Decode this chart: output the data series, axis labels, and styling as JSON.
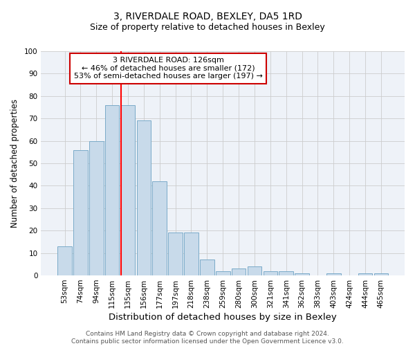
{
  "title": "3, RIVERDALE ROAD, BEXLEY, DA5 1RD",
  "subtitle": "Size of property relative to detached houses in Bexley",
  "xlabel": "Distribution of detached houses by size in Bexley",
  "ylabel": "Number of detached properties",
  "categories": [
    "53sqm",
    "74sqm",
    "94sqm",
    "115sqm",
    "135sqm",
    "156sqm",
    "177sqm",
    "197sqm",
    "218sqm",
    "238sqm",
    "259sqm",
    "280sqm",
    "300sqm",
    "321sqm",
    "341sqm",
    "362sqm",
    "383sqm",
    "403sqm",
    "424sqm",
    "444sqm",
    "465sqm"
  ],
  "values": [
    13,
    56,
    60,
    76,
    76,
    69,
    42,
    19,
    19,
    7,
    2,
    3,
    4,
    2,
    2,
    1,
    0,
    1,
    0,
    1,
    1
  ],
  "bar_color": "#c8daea",
  "bar_edge_color": "#7aaac8",
  "annotation_text": "3 RIVERDALE ROAD: 126sqm\n← 46% of detached houses are smaller (172)\n53% of semi-detached houses are larger (197) →",
  "annotation_box_color": "#ffffff",
  "annotation_box_edge": "#cc0000",
  "ylim": [
    0,
    100
  ],
  "yticks": [
    0,
    10,
    20,
    30,
    40,
    50,
    60,
    70,
    80,
    90,
    100
  ],
  "grid_color": "#cccccc",
  "background_color": "#eef2f8",
  "footer": "Contains HM Land Registry data © Crown copyright and database right 2024.\nContains public sector information licensed under the Open Government Licence v3.0.",
  "title_fontsize": 10,
  "subtitle_fontsize": 9,
  "xlabel_fontsize": 9.5,
  "ylabel_fontsize": 8.5,
  "tick_fontsize": 7.5,
  "annotation_fontsize": 8,
  "footer_fontsize": 6.5
}
